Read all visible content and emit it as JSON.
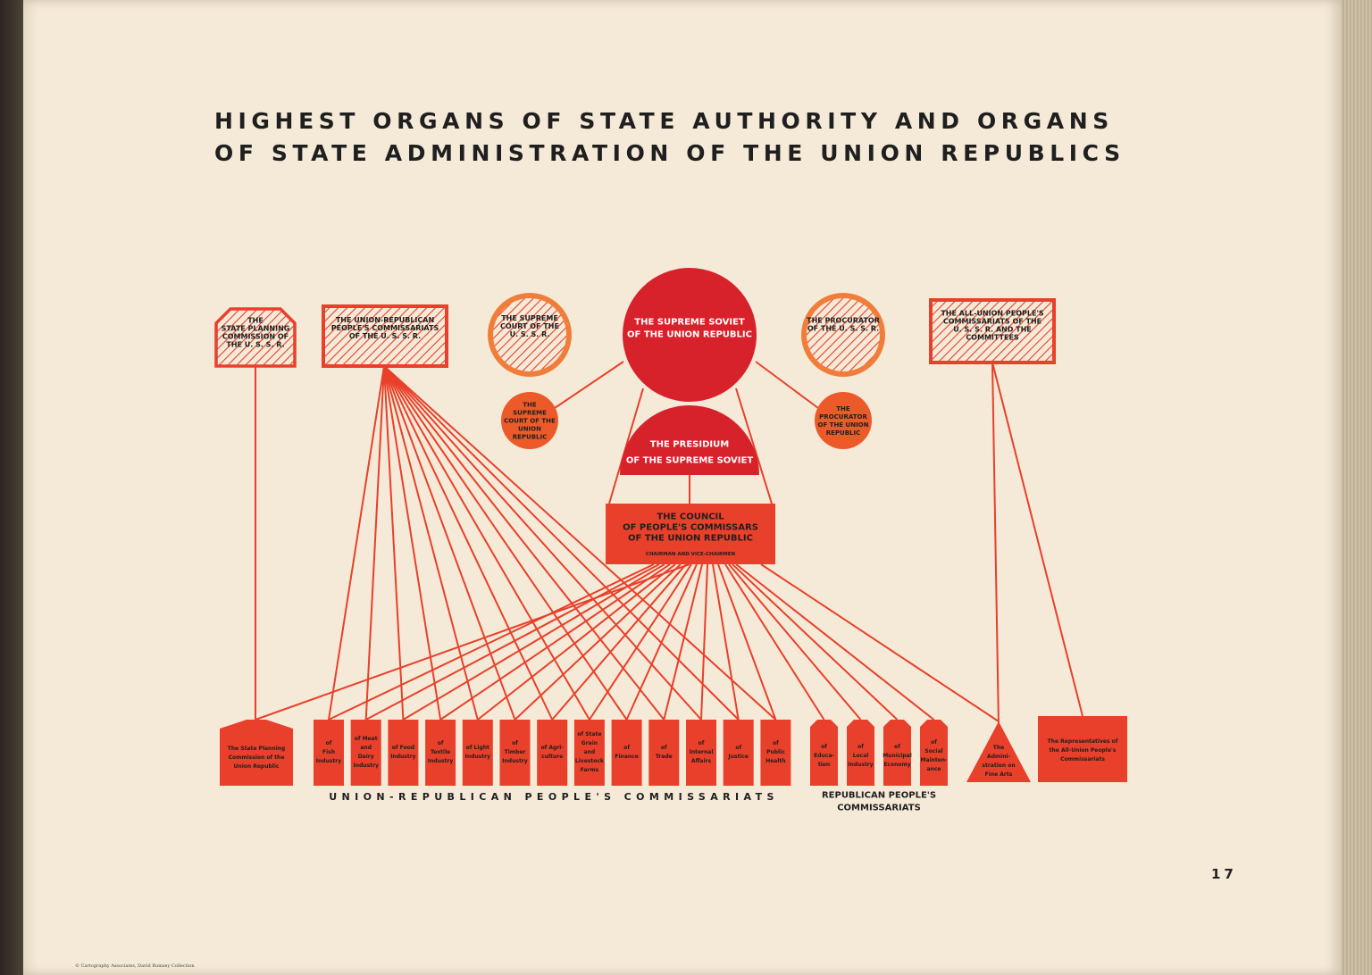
{
  "title": {
    "line1": "HIGHEST ORGANS OF STATE AUTHORITY AND ORGANS",
    "line2": "OF STATE ADMINISTRATION OF THE UNION REPUBLICS"
  },
  "page_number": "17",
  "credit": "© Cartography Associates, David Rumsey Collection",
  "colors": {
    "dark_red": "#d8222b",
    "red": "#e8402a",
    "orange": "#ec5a2a",
    "light_orange": "#f07e3a",
    "paper": "#f5ead8",
    "ink": "#1f1f1f"
  },
  "top_union_bodies": [
    {
      "id": "state_planning_ussr",
      "shape": "hexagon-hatched",
      "lines": [
        "THE",
        "STATE PLANNING",
        "COMMISSION OF",
        "THE U. S. S. R."
      ]
    },
    {
      "id": "union_republican_ussr",
      "shape": "rect-hatched",
      "lines": [
        "THE UNION-REPUBLICAN",
        "PEOPLE'S COMMISSARIATS",
        "OF THE U. S. S. R."
      ]
    },
    {
      "id": "supreme_court_ussr",
      "shape": "circle-hatched",
      "lines": [
        "THE SUPREME",
        "COURT OF THE",
        "U. S. S. R."
      ]
    },
    {
      "id": "procurator_ussr",
      "shape": "circle-hatched",
      "lines": [
        "THE PROCURATOR",
        "OF THE U. S. S. R."
      ]
    },
    {
      "id": "all_union_ussr",
      "shape": "rect-hatched",
      "lines": [
        "THE ALL-UNION PEOPLE'S",
        "COMMISSARIATS OF THE",
        "U. S. S. R. AND THE",
        "COMMITTEES"
      ]
    }
  ],
  "republic_bodies": [
    {
      "id": "supreme_soviet",
      "lines": [
        "THE SUPREME SOVIET",
        "OF THE UNION REPUBLIC"
      ]
    },
    {
      "id": "presidium",
      "lines": [
        "THE PRESIDIUM",
        "OF THE SUPREME SOVIET"
      ]
    },
    {
      "id": "council",
      "lines": [
        "THE COUNCIL",
        "OF PEOPLE'S COMMISSARS",
        "OF THE UNION REPUBLIC"
      ],
      "subtitle": "CHAIRMAN AND VICE-CHAIRMEN"
    },
    {
      "id": "supreme_court_republic",
      "lines": [
        "THE",
        "SUPREME",
        "COURT OF THE",
        "UNION",
        "REPUBLIC"
      ]
    },
    {
      "id": "procurator_republic",
      "lines": [
        "THE",
        "PROCURATOR",
        "OF THE UNION",
        "REPUBLIC"
      ]
    }
  ],
  "bottom_bodies": {
    "state_planning_republic": {
      "lines": [
        "The State Planning",
        "Commission of the",
        "Union Republic"
      ]
    },
    "union_republican_commissariats": [
      {
        "lines": [
          "of",
          "Fish",
          "Industry"
        ]
      },
      {
        "lines": [
          "of Meat",
          "and",
          "Dairy",
          "Industry"
        ]
      },
      {
        "lines": [
          "of Food",
          "Industry"
        ]
      },
      {
        "lines": [
          "of",
          "Textile",
          "Industry"
        ]
      },
      {
        "lines": [
          "of Light",
          "Industry"
        ]
      },
      {
        "lines": [
          "of",
          "Timber",
          "Industry"
        ]
      },
      {
        "lines": [
          "of Agri-",
          "culture"
        ]
      },
      {
        "lines": [
          "of State",
          "Grain",
          "and",
          "Livestock",
          "Farms"
        ]
      },
      {
        "lines": [
          "of",
          "Finance"
        ]
      },
      {
        "lines": [
          "of",
          "Trade"
        ]
      },
      {
        "lines": [
          "of",
          "Internal",
          "Affairs"
        ]
      },
      {
        "lines": [
          "of",
          "Justice"
        ]
      },
      {
        "lines": [
          "of",
          "Public",
          "Health"
        ]
      }
    ],
    "republican_commissariats": [
      {
        "lines": [
          "of",
          "Educa-",
          "tion"
        ]
      },
      {
        "lines": [
          "of",
          "Local",
          "Industry"
        ]
      },
      {
        "lines": [
          "of",
          "Municipal",
          "Economy"
        ]
      },
      {
        "lines": [
          "of",
          "Social",
          "Mainten-",
          "ance"
        ]
      }
    ],
    "fine_arts": {
      "lines": [
        "The",
        "Admini-",
        "stration on",
        "Fine Arts"
      ]
    },
    "representatives": {
      "lines": [
        "The Representatives of",
        "the All-Union People's",
        "Commissariats"
      ]
    }
  },
  "group_labels": {
    "union_republican": "UNION-REPUBLICAN PEOPLE'S COMMISSARIATS",
    "republican": [
      "REPUBLICAN PEOPLE'S",
      "COMMISSARIATS"
    ]
  }
}
